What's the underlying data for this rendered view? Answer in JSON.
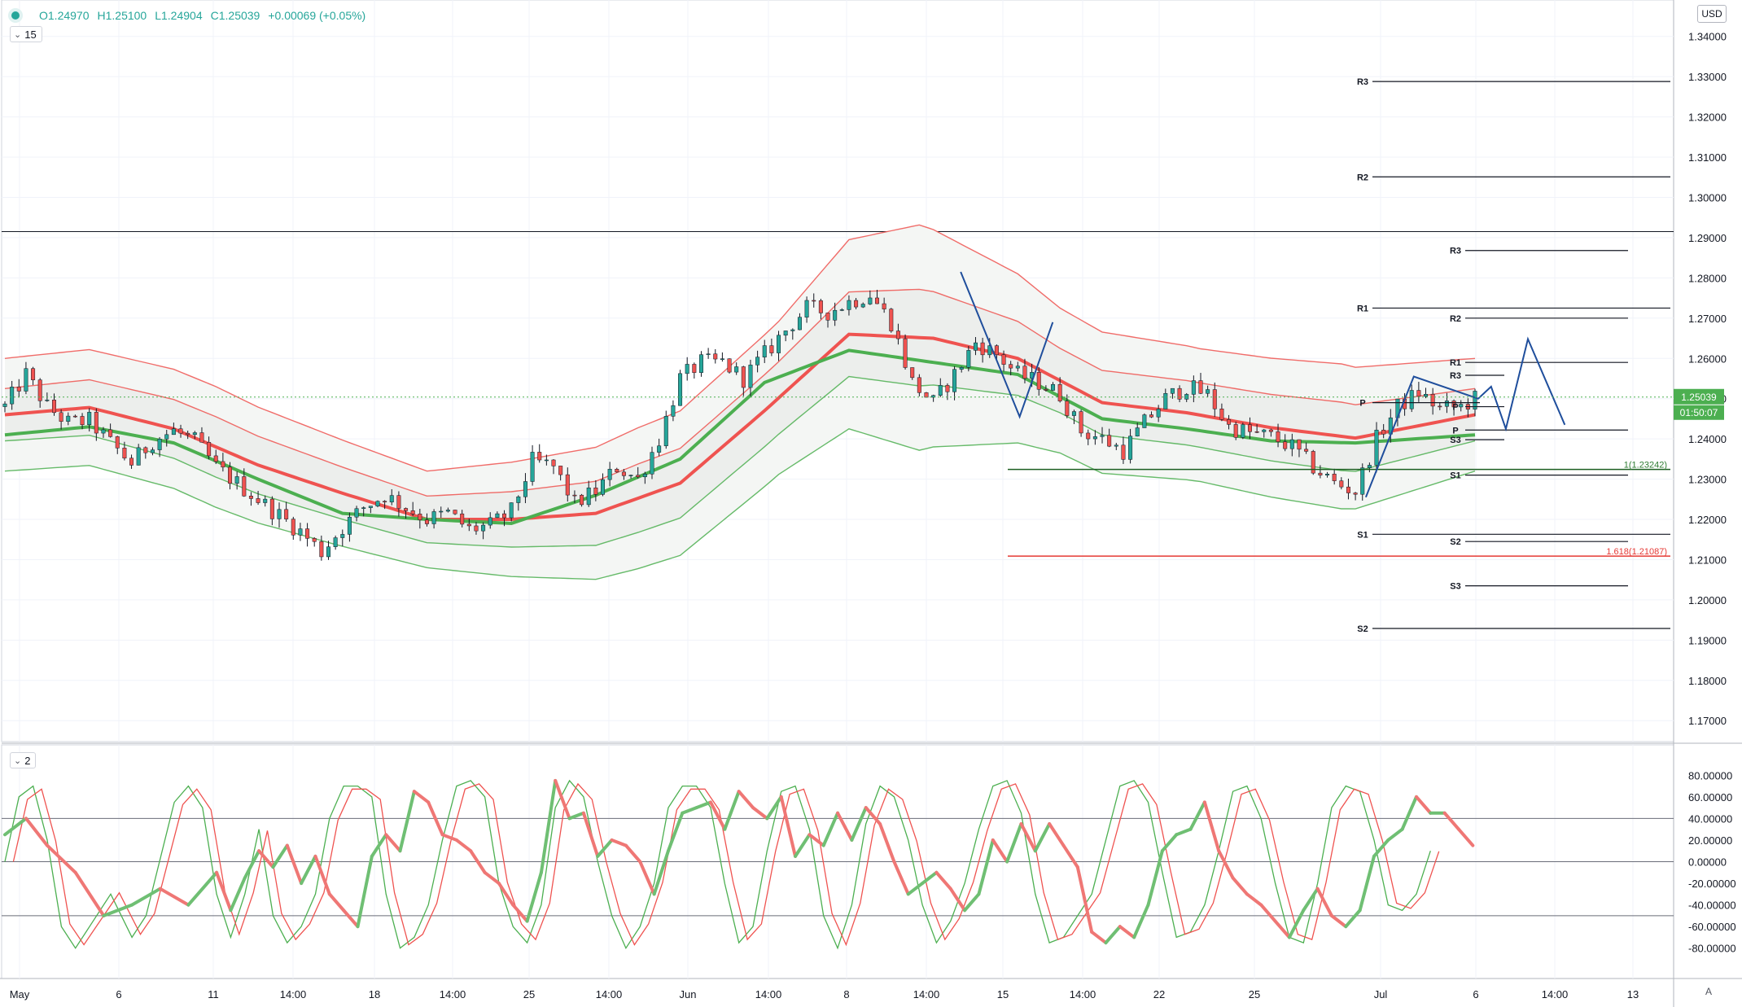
{
  "header": {
    "open": "O1.24970",
    "high": "H1.25100",
    "low": "L1.24904",
    "close": "C1.25039",
    "change": "+0.00069 (+0.05%)",
    "interval_badge": "15",
    "indicator_badge": "2",
    "currency": "USD",
    "auto_icon": "A",
    "status_icon": "status-dot-icon",
    "chevron_icon": "chevron-down-icon"
  },
  "colors": {
    "up": "#26a69a",
    "down": "#ef5350",
    "red_line": "#ef5350",
    "green_line": "#4caf50",
    "pattern": "#1f4e9c",
    "fib_green": "#1b5e20",
    "fib_red": "#e53935",
    "last_price_bg": "#4caf50"
  },
  "price_axis": {
    "ticks": [
      "1.34000",
      "1.33000",
      "1.32000",
      "1.31000",
      "1.30000",
      "1.29000",
      "1.28000",
      "1.27000",
      "1.26000",
      "1.25000",
      "1.24000",
      "1.23000",
      "1.22000",
      "1.21000",
      "1.20000",
      "1.19000",
      "1.18000",
      "1.17000"
    ],
    "last_price": "1.25039",
    "countdown": "01:50:07"
  },
  "osc_axis": {
    "ticks": [
      "80.00000",
      "60.00000",
      "40.00000",
      "20.00000",
      "0.00000",
      "-20.00000",
      "-40.00000",
      "-60.00000",
      "-80.00000"
    ],
    "levels": [
      40,
      0,
      -50
    ]
  },
  "time_axis": [
    "May",
    "6",
    "11",
    "14:00",
    "18",
    "14:00",
    "25",
    "14:00",
    "Jun",
    "14:00",
    "8",
    "14:00",
    "15",
    "14:00",
    "22",
    "25",
    "Jul",
    "6",
    "14:00",
    "13"
  ],
  "pivots": [
    {
      "label": "R3",
      "price": 1.3288
    },
    {
      "label": "R2",
      "price": 1.3051
    },
    {
      "label": "R1",
      "price": 1.2725
    },
    {
      "label": "S1",
      "price": 1.2163
    },
    {
      "label": "S2",
      "price": 1.1929
    },
    {
      "label": "R3",
      "price": 1.2868
    },
    {
      "label": "R2",
      "price": 1.27
    },
    {
      "label": "R1",
      "price": 1.259
    },
    {
      "label": "P",
      "price": 1.2422
    },
    {
      "label": "S1",
      "price": 1.231
    },
    {
      "label": "S2",
      "price": 1.2145
    },
    {
      "label": "S3",
      "price": 1.2035
    },
    {
      "label": "R3",
      "price": 1.2558
    },
    {
      "label": "P",
      "price": 1.249
    },
    {
      "label": "P",
      "price": 1.248
    },
    {
      "label": "S3",
      "price": 1.2398
    }
  ],
  "fib_levels": [
    {
      "label": "1(1.23242)",
      "price": 1.23242
    },
    {
      "label": "1.618(1.21087)",
      "price": 1.21087
    }
  ],
  "chart_data": {
    "type": "candlestick",
    "x_range": [
      "2020-05-01",
      "2020-07-13"
    ],
    "ylim": [
      1.166,
      1.345
    ],
    "osc_ylim": [
      -90,
      90
    ],
    "close_path": [
      [
        0,
        1.248
      ],
      [
        3,
        1.256
      ],
      [
        6,
        1.248
      ],
      [
        9,
        1.244
      ],
      [
        12,
        1.2445
      ],
      [
        15,
        1.239
      ],
      [
        18,
        1.234
      ],
      [
        21,
        1.2395
      ],
      [
        24,
        1.242
      ],
      [
        27,
        1.2395
      ],
      [
        30,
        1.233
      ],
      [
        33,
        1.229
      ],
      [
        36,
        1.225
      ],
      [
        39,
        1.221
      ],
      [
        42,
        1.217
      ],
      [
        45,
        1.212
      ],
      [
        48,
        1.218
      ],
      [
        51,
        1.223
      ],
      [
        54,
        1.226
      ],
      [
        57,
        1.223
      ],
      [
        60,
        1.22
      ],
      [
        63,
        1.2215
      ],
      [
        66,
        1.2175
      ],
      [
        69,
        1.2185
      ],
      [
        72,
        1.222
      ],
      [
        75,
        1.2345
      ],
      [
        78,
        1.233
      ],
      [
        81,
        1.224
      ],
      [
        84,
        1.227
      ],
      [
        87,
        1.233
      ],
      [
        90,
        1.23
      ],
      [
        93,
        1.24
      ],
      [
        96,
        1.255
      ],
      [
        99,
        1.259
      ],
      [
        102,
        1.259
      ],
      [
        105,
        1.255
      ],
      [
        108,
        1.261
      ],
      [
        111,
        1.267
      ],
      [
        114,
        1.2725
      ],
      [
        117,
        1.2715
      ],
      [
        120,
        1.274
      ],
      [
        123,
        1.276
      ],
      [
        126,
        1.269
      ],
      [
        129,
        1.254
      ],
      [
        132,
        1.249
      ],
      [
        135,
        1.256
      ],
      [
        138,
        1.264
      ],
      [
        141,
        1.261
      ],
      [
        144,
        1.256
      ],
      [
        147,
        1.254
      ],
      [
        150,
        1.251
      ],
      [
        153,
        1.242
      ],
      [
        156,
        1.24
      ],
      [
        159,
        1.237
      ],
      [
        162,
        1.244
      ],
      [
        165,
        1.25
      ],
      [
        168,
        1.253
      ],
      [
        171,
        1.251
      ],
      [
        174,
        1.243
      ],
      [
        177,
        1.2415
      ],
      [
        180,
        1.2405
      ],
      [
        183,
        1.238
      ],
      [
        186,
        1.233
      ],
      [
        189,
        1.229
      ],
      [
        192,
        1.227
      ],
      [
        195,
        1.24
      ],
      [
        198,
        1.248
      ],
      [
        201,
        1.2515
      ],
      [
        204,
        1.2475
      ],
      [
        207,
        1.248
      ],
      [
        209,
        1.25
      ]
    ],
    "n_candles": 210,
    "seed": 12345,
    "red_ma": [
      [
        0,
        1.246
      ],
      [
        12,
        1.2478
      ],
      [
        24,
        1.2425
      ],
      [
        36,
        1.2335
      ],
      [
        48,
        1.2265
      ],
      [
        60,
        1.22
      ],
      [
        72,
        1.22
      ],
      [
        84,
        1.2215
      ],
      [
        96,
        1.229
      ],
      [
        108,
        1.247
      ],
      [
        120,
        1.266
      ],
      [
        132,
        1.265
      ],
      [
        144,
        1.26
      ],
      [
        156,
        1.249
      ],
      [
        168,
        1.2465
      ],
      [
        180,
        1.2428
      ],
      [
        192,
        1.2402
      ],
      [
        209,
        1.246
      ]
    ],
    "green_ma": [
      [
        0,
        1.241
      ],
      [
        12,
        1.243
      ],
      [
        24,
        1.239
      ],
      [
        36,
        1.23
      ],
      [
        48,
        1.2215
      ],
      [
        60,
        1.22
      ],
      [
        72,
        1.219
      ],
      [
        84,
        1.226
      ],
      [
        96,
        1.235
      ],
      [
        108,
        1.254
      ],
      [
        120,
        1.262
      ],
      [
        132,
        1.259
      ],
      [
        144,
        1.256
      ],
      [
        156,
        1.245
      ],
      [
        168,
        1.2425
      ],
      [
        180,
        1.2395
      ],
      [
        192,
        1.239
      ],
      [
        209,
        1.241
      ]
    ],
    "band_inner_width": [
      [
        0,
        0.0065
      ],
      [
        30,
        0.0075
      ],
      [
        60,
        0.0058
      ],
      [
        90,
        0.0085
      ],
      [
        110,
        0.009
      ],
      [
        130,
        0.012
      ],
      [
        150,
        0.008
      ],
      [
        170,
        0.008
      ],
      [
        190,
        0.0085
      ],
      [
        209,
        0.0065
      ]
    ],
    "band_outer_width": [
      [
        0,
        0.014
      ],
      [
        30,
        0.015
      ],
      [
        60,
        0.012
      ],
      [
        90,
        0.0175
      ],
      [
        110,
        0.019
      ],
      [
        130,
        0.028
      ],
      [
        150,
        0.018
      ],
      [
        170,
        0.0165
      ],
      [
        190,
        0.018
      ],
      [
        209,
        0.014
      ]
    ],
    "pattern_zigzag_1": [
      [
        "2020-06-12 14:00",
        1.2815
      ],
      [
        "2020-06-15 06:00",
        1.2455
      ],
      [
        "2020-06-16 18:00",
        1.269
      ]
    ],
    "pattern_zigzag_2": [
      [
        "2020-06-30 22:00",
        1.2255
      ],
      [
        "2020-07-03 02:00",
        1.2555
      ],
      [
        "2020-07-06 00:00",
        1.25
      ],
      [
        "2020-07-06 14:00",
        1.253
      ],
      [
        "2020-07-07 06:00",
        1.2425
      ],
      [
        "2020-07-08 06:00",
        1.2648
      ],
      [
        "2020-07-09 22:00",
        1.2435
      ]
    ],
    "osc_thick": [
      [
        0,
        25
      ],
      [
        3,
        40
      ],
      [
        6,
        15
      ],
      [
        10,
        -10
      ],
      [
        14,
        -50
      ],
      [
        18,
        -40
      ],
      [
        22,
        -25
      ],
      [
        26,
        -40
      ],
      [
        30,
        -10
      ],
      [
        32,
        -45
      ],
      [
        34,
        -15
      ],
      [
        36,
        10
      ],
      [
        38,
        -5
      ],
      [
        40,
        15
      ],
      [
        42,
        -20
      ],
      [
        44,
        5
      ],
      [
        46,
        -30
      ],
      [
        48,
        -45
      ],
      [
        50,
        -60
      ],
      [
        52,
        5
      ],
      [
        54,
        25
      ],
      [
        56,
        10
      ],
      [
        58,
        65
      ],
      [
        60,
        55
      ],
      [
        62,
        25
      ],
      [
        64,
        20
      ],
      [
        66,
        10
      ],
      [
        68,
        -10
      ],
      [
        70,
        -20
      ],
      [
        72,
        -40
      ],
      [
        74,
        -55
      ],
      [
        76,
        -10
      ],
      [
        78,
        75
      ],
      [
        80,
        40
      ],
      [
        82,
        45
      ],
      [
        84,
        5
      ],
      [
        86,
        20
      ],
      [
        88,
        15
      ],
      [
        90,
        0
      ],
      [
        92,
        -30
      ],
      [
        94,
        10
      ],
      [
        96,
        45
      ],
      [
        98,
        50
      ],
      [
        100,
        55
      ],
      [
        102,
        30
      ],
      [
        104,
        65
      ],
      [
        106,
        50
      ],
      [
        108,
        40
      ],
      [
        110,
        60
      ],
      [
        112,
        5
      ],
      [
        114,
        25
      ],
      [
        116,
        15
      ],
      [
        118,
        45
      ],
      [
        120,
        20
      ],
      [
        122,
        50
      ],
      [
        124,
        35
      ],
      [
        126,
        0
      ],
      [
        128,
        -30
      ],
      [
        130,
        -20
      ],
      [
        132,
        -10
      ],
      [
        134,
        -25
      ],
      [
        136,
        -45
      ],
      [
        138,
        -30
      ],
      [
        140,
        20
      ],
      [
        142,
        0
      ],
      [
        144,
        35
      ],
      [
        146,
        10
      ],
      [
        148,
        35
      ],
      [
        150,
        15
      ],
      [
        152,
        -5
      ],
      [
        154,
        -65
      ],
      [
        156,
        -75
      ],
      [
        158,
        -60
      ],
      [
        160,
        -70
      ],
      [
        162,
        -40
      ],
      [
        164,
        10
      ],
      [
        166,
        25
      ],
      [
        168,
        30
      ],
      [
        170,
        55
      ],
      [
        172,
        10
      ],
      [
        174,
        -15
      ],
      [
        176,
        -30
      ],
      [
        178,
        -40
      ],
      [
        180,
        -55
      ],
      [
        182,
        -70
      ],
      [
        184,
        -45
      ],
      [
        186,
        -25
      ],
      [
        188,
        -50
      ],
      [
        190,
        -60
      ],
      [
        192,
        -45
      ],
      [
        194,
        5
      ],
      [
        196,
        20
      ],
      [
        198,
        30
      ],
      [
        200,
        60
      ],
      [
        202,
        45
      ],
      [
        204,
        45
      ],
      [
        206,
        30
      ],
      [
        208,
        15
      ]
    ],
    "osc_thin_green": [
      [
        0,
        0
      ],
      [
        2,
        60
      ],
      [
        4,
        70
      ],
      [
        6,
        20
      ],
      [
        8,
        -60
      ],
      [
        10,
        -80
      ],
      [
        12,
        -60
      ],
      [
        15,
        -30
      ],
      [
        18,
        -70
      ],
      [
        20,
        -50
      ],
      [
        24,
        55
      ],
      [
        26,
        70
      ],
      [
        28,
        50
      ],
      [
        30,
        -30
      ],
      [
        32,
        -70
      ],
      [
        34,
        -30
      ],
      [
        36,
        30
      ],
      [
        38,
        -50
      ],
      [
        40,
        -75
      ],
      [
        42,
        -60
      ],
      [
        44,
        -30
      ],
      [
        46,
        40
      ],
      [
        48,
        70
      ],
      [
        50,
        70
      ],
      [
        52,
        60
      ],
      [
        54,
        -30
      ],
      [
        56,
        -80
      ],
      [
        58,
        -70
      ],
      [
        60,
        -40
      ],
      [
        62,
        20
      ],
      [
        64,
        70
      ],
      [
        66,
        75
      ],
      [
        68,
        60
      ],
      [
        70,
        -20
      ],
      [
        72,
        -60
      ],
      [
        74,
        -75
      ],
      [
        76,
        -40
      ],
      [
        78,
        50
      ],
      [
        80,
        75
      ],
      [
        82,
        60
      ],
      [
        84,
        0
      ],
      [
        86,
        -50
      ],
      [
        88,
        -80
      ],
      [
        90,
        -60
      ],
      [
        92,
        -20
      ],
      [
        94,
        50
      ],
      [
        96,
        70
      ],
      [
        98,
        70
      ],
      [
        100,
        50
      ],
      [
        102,
        -20
      ],
      [
        104,
        -75
      ],
      [
        106,
        -60
      ],
      [
        108,
        10
      ],
      [
        110,
        65
      ],
      [
        112,
        70
      ],
      [
        114,
        30
      ],
      [
        116,
        -50
      ],
      [
        118,
        -80
      ],
      [
        120,
        -40
      ],
      [
        122,
        35
      ],
      [
        124,
        70
      ],
      [
        126,
        60
      ],
      [
        128,
        20
      ],
      [
        130,
        -40
      ],
      [
        132,
        -75
      ],
      [
        134,
        -55
      ],
      [
        136,
        -20
      ],
      [
        138,
        30
      ],
      [
        140,
        70
      ],
      [
        142,
        75
      ],
      [
        144,
        45
      ],
      [
        146,
        -30
      ],
      [
        148,
        -75
      ],
      [
        150,
        -70
      ],
      [
        152,
        -50
      ],
      [
        154,
        -30
      ],
      [
        156,
        20
      ],
      [
        158,
        70
      ],
      [
        160,
        75
      ],
      [
        162,
        55
      ],
      [
        164,
        -10
      ],
      [
        166,
        -70
      ],
      [
        168,
        -65
      ],
      [
        170,
        -40
      ],
      [
        172,
        10
      ],
      [
        174,
        65
      ],
      [
        176,
        70
      ],
      [
        178,
        40
      ],
      [
        180,
        -20
      ],
      [
        182,
        -70
      ],
      [
        184,
        -75
      ],
      [
        186,
        -20
      ],
      [
        188,
        50
      ],
      [
        190,
        70
      ],
      [
        192,
        65
      ],
      [
        194,
        20
      ],
      [
        196,
        -40
      ],
      [
        198,
        -45
      ],
      [
        200,
        -30
      ],
      [
        202,
        10
      ]
    ]
  }
}
